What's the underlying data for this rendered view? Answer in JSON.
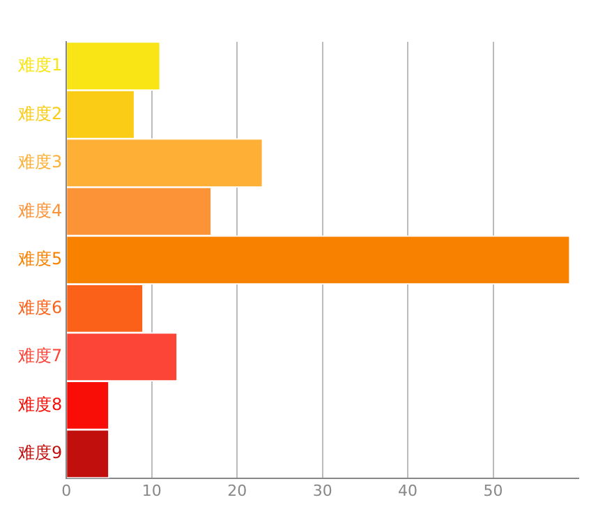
{
  "chart_data": {
    "type": "bar",
    "orientation": "horizontal",
    "categories": [
      "难度1",
      "难度2",
      "难度3",
      "难度4",
      "难度5",
      "难度6",
      "难度7",
      "难度8",
      "难度9"
    ],
    "values": [
      11,
      8,
      23,
      17,
      59,
      9,
      13,
      5,
      5
    ],
    "colors": [
      "#f9e516",
      "#fbcc15",
      "#fdb035",
      "#fd9337",
      "#f88200",
      "#fb6118",
      "#fd4537",
      "#f80e06",
      "#c00f0c"
    ],
    "xlim": [
      0,
      60
    ],
    "xticks": [
      0,
      10,
      20,
      30,
      40,
      50
    ],
    "grid": "x",
    "legend": false
  }
}
